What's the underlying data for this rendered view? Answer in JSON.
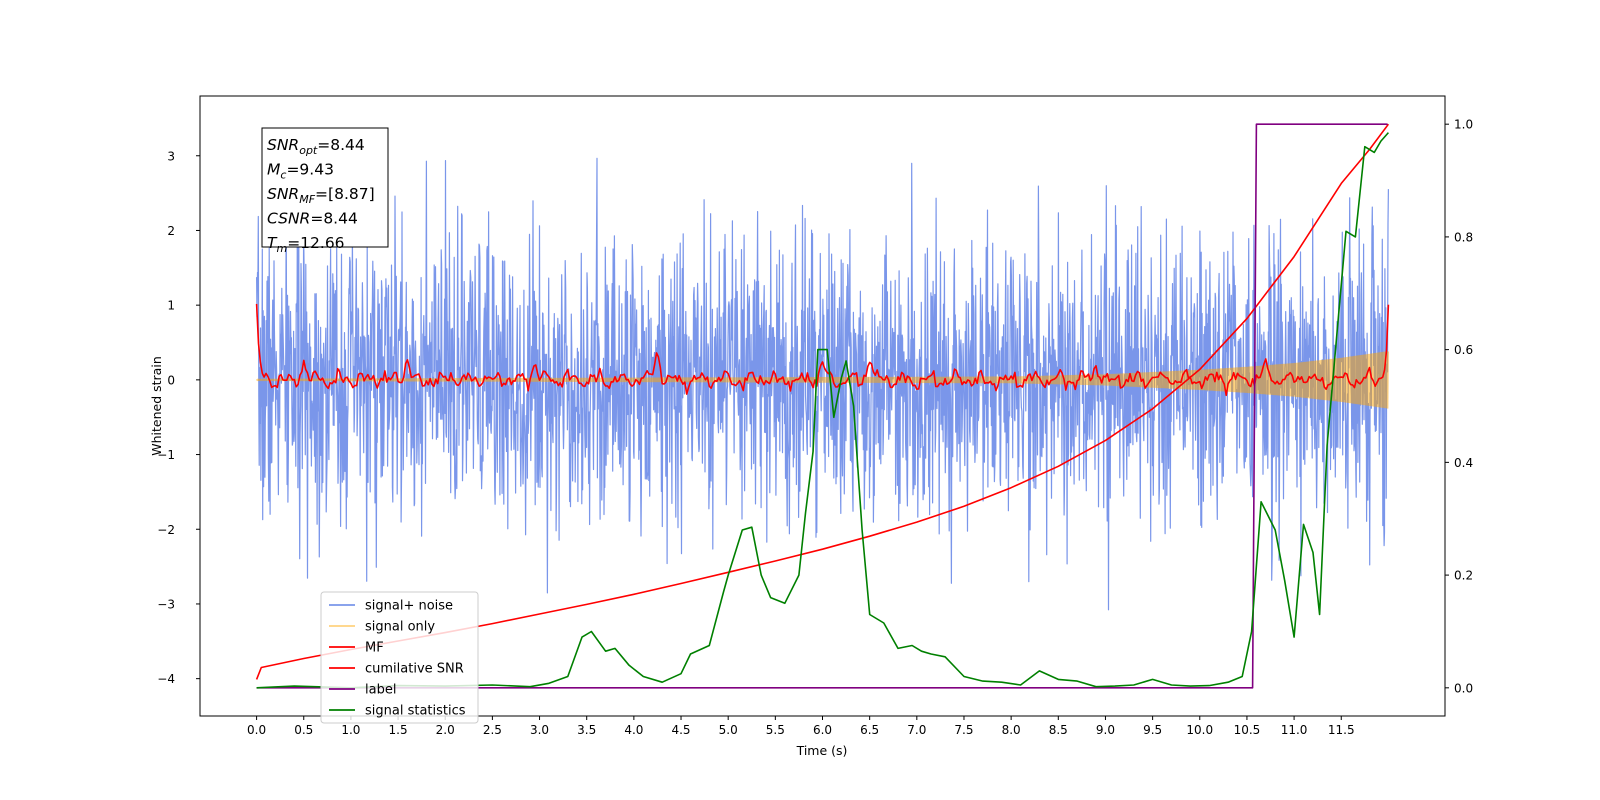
{
  "chart_data": {
    "type": "line",
    "xlabel": "Time (s)",
    "ylabel_left": "Whitened strain",
    "ylim_left": [
      -4.5,
      3.8
    ],
    "ylim_right": [
      -0.05,
      1.05
    ],
    "xlim": [
      -0.6,
      12.6
    ],
    "x_ticks": [
      0.0,
      0.5,
      1.0,
      1.5,
      2.0,
      2.5,
      3.0,
      3.5,
      4.0,
      4.5,
      5.0,
      5.5,
      6.0,
      6.5,
      7.0,
      7.5,
      8.0,
      8.5,
      9.0,
      9.5,
      10.0,
      10.5,
      11.0,
      11.5
    ],
    "x_tick_labels": [
      "0.0",
      "0.5",
      "1.0",
      "1.5",
      "2.0",
      "2.5",
      "3.0",
      "3.5",
      "4.0",
      "4.5",
      "5.0",
      "5.5",
      "6.0",
      "6.5",
      "7.0",
      "7.5",
      "8.0",
      "8.5",
      "9.0",
      "9.5",
      "10.0",
      "10.5",
      "11.0",
      "11.5"
    ],
    "y_left_ticks": [
      -4,
      -3,
      -2,
      -1,
      0,
      1,
      2,
      3
    ],
    "y_left_tick_labels": [
      "−4",
      "−3",
      "−2",
      "−1",
      "0",
      "1",
      "2",
      "3"
    ],
    "y_right_ticks": [
      0.0,
      0.2,
      0.4,
      0.6,
      0.8,
      1.0
    ],
    "y_right_tick_labels": [
      "0.0",
      "0.2",
      "0.4",
      "0.6",
      "0.8",
      "1.0"
    ],
    "grid": false,
    "legend_position": "bottom-left",
    "annotation": [
      {
        "base": "SNR",
        "sub": "opt",
        "value": "=8.44"
      },
      {
        "base": "M",
        "sub": "c",
        "value": "=9.43"
      },
      {
        "base": "SNR",
        "sub": "MF",
        "value": "=[8.87]"
      },
      {
        "base": "CSNR",
        "sub": "",
        "value": "=8.44"
      },
      {
        "base": "T",
        "sub": "m",
        "value": "=12.66"
      }
    ],
    "series": [
      {
        "name": "signal+ noise",
        "axis": "left",
        "color": "#4169e1",
        "kind": "noise",
        "x_range": [
          0.0,
          12.0
        ],
        "amplitude_std": 0.95,
        "min": -3.6,
        "max": 3.45
      },
      {
        "name": "signal only",
        "axis": "left",
        "color": "#ffa500",
        "kind": "chirp",
        "x_range": [
          0.0,
          12.0
        ],
        "envelope": [
          [
            0.0,
            0.01
          ],
          [
            8.0,
            0.04
          ],
          [
            9.0,
            0.07
          ],
          [
            10.0,
            0.13
          ],
          [
            10.5,
            0.17
          ],
          [
            11.0,
            0.22
          ],
          [
            11.5,
            0.29
          ],
          [
            12.0,
            0.38
          ]
        ]
      },
      {
        "name": "MF",
        "axis": "left",
        "color": "#ff0000",
        "kind": "matched-filter",
        "x_range": [
          0.0,
          12.0
        ],
        "start_value": 1.0,
        "end_value": 1.0,
        "peaks": [
          [
            0.5,
            0.3
          ],
          [
            1.6,
            0.22
          ],
          [
            2.95,
            0.25
          ],
          [
            4.25,
            0.37
          ],
          [
            6.0,
            0.22
          ],
          [
            6.5,
            0.3
          ],
          [
            8.9,
            0.25
          ],
          [
            10.7,
            0.22
          ]
        ]
      },
      {
        "name": "cumilative SNR",
        "axis": "right",
        "color": "#ff0000",
        "x": [
          0.0,
          0.05,
          0.5,
          1.0,
          1.5,
          2.0,
          2.5,
          3.0,
          3.5,
          4.0,
          4.5,
          5.0,
          5.5,
          6.0,
          6.5,
          7.0,
          7.5,
          8.0,
          8.5,
          9.0,
          9.5,
          10.0,
          10.5,
          11.0,
          11.5,
          11.8,
          12.0
        ],
        "y": [
          0.015,
          0.036,
          0.052,
          0.068,
          0.083,
          0.098,
          0.114,
          0.131,
          0.148,
          0.166,
          0.185,
          0.205,
          0.225,
          0.246,
          0.269,
          0.294,
          0.322,
          0.355,
          0.393,
          0.439,
          0.495,
          0.565,
          0.655,
          0.765,
          0.895,
          0.955,
          1.0
        ]
      },
      {
        "name": "label",
        "axis": "right",
        "color": "#800080",
        "x": [
          0.0,
          10.56,
          10.6,
          11.99
        ],
        "y": [
          0.0,
          0.0,
          1.0,
          1.0
        ]
      },
      {
        "name": "signal statistics",
        "axis": "right",
        "color": "#008000",
        "x": [
          0.0,
          0.4,
          1.0,
          1.5,
          2.0,
          2.5,
          2.9,
          3.1,
          3.3,
          3.45,
          3.55,
          3.7,
          3.8,
          3.95,
          4.1,
          4.3,
          4.5,
          4.6,
          4.8,
          4.95,
          5.0,
          5.15,
          5.25,
          5.35,
          5.45,
          5.6,
          5.75,
          5.82,
          5.9,
          5.95,
          6.05,
          6.12,
          6.2,
          6.25,
          6.33,
          6.42,
          6.5,
          6.65,
          6.8,
          6.95,
          7.05,
          7.15,
          7.3,
          7.5,
          7.7,
          7.9,
          8.1,
          8.3,
          8.5,
          8.7,
          8.9,
          9.1,
          9.3,
          9.5,
          9.7,
          9.9,
          10.1,
          10.3,
          10.45,
          10.55,
          10.65,
          10.8,
          10.9,
          11.0,
          11.1,
          11.2,
          11.27,
          11.35,
          11.45,
          11.55,
          11.65,
          11.75,
          11.85,
          11.92,
          12.0
        ],
        "y": [
          0.0,
          0.003,
          0.0,
          0.004,
          0.003,
          0.005,
          0.002,
          0.008,
          0.02,
          0.09,
          0.1,
          0.065,
          0.07,
          0.04,
          0.02,
          0.01,
          0.025,
          0.06,
          0.075,
          0.17,
          0.2,
          0.28,
          0.285,
          0.2,
          0.16,
          0.15,
          0.2,
          0.31,
          0.42,
          0.6,
          0.6,
          0.48,
          0.55,
          0.58,
          0.5,
          0.28,
          0.13,
          0.115,
          0.07,
          0.075,
          0.065,
          0.06,
          0.055,
          0.02,
          0.012,
          0.01,
          0.005,
          0.03,
          0.015,
          0.012,
          0.002,
          0.003,
          0.005,
          0.015,
          0.005,
          0.003,
          0.004,
          0.01,
          0.02,
          0.1,
          0.33,
          0.28,
          0.19,
          0.09,
          0.29,
          0.24,
          0.13,
          0.43,
          0.62,
          0.81,
          0.8,
          0.96,
          0.95,
          0.97,
          0.985
        ]
      }
    ]
  }
}
